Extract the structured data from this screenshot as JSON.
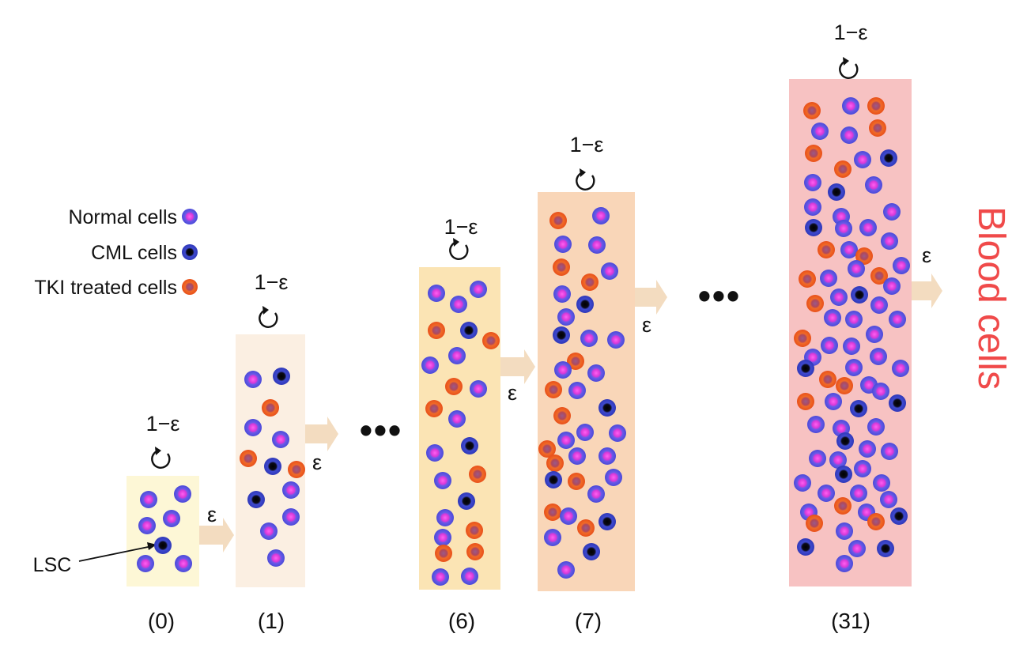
{
  "legend": {
    "normal_label": "Normal cells",
    "cml_label": "CML cells",
    "tki_label": "TKI treated cells"
  },
  "colors": {
    "normal_outer": "#5b5be0",
    "normal_inner": "#e23ad8",
    "cml_outer": "#3a45c8",
    "cml_inner": "#0a0a0a",
    "tki_outer": "#f05a20",
    "tki_inner": "#b04040",
    "blood_text": "#f04a4a",
    "stage_fill": [
      "#fdf7d6",
      "#fbefe2",
      "#fbe4b4",
      "#f9d6b8",
      "#f7c2c2"
    ],
    "arrow_fill": "#f3dcc0"
  },
  "self_renewal_label": "1−ε",
  "differentiation_label": "ε",
  "lsc_label": "LSC",
  "ellipsis": "•••",
  "blood_label": "Blood cells",
  "stages": [
    {
      "label": "(0)"
    },
    {
      "label": "(1)"
    },
    {
      "label": "(6)"
    },
    {
      "label": "(7)"
    },
    {
      "label": "(31)"
    }
  ]
}
